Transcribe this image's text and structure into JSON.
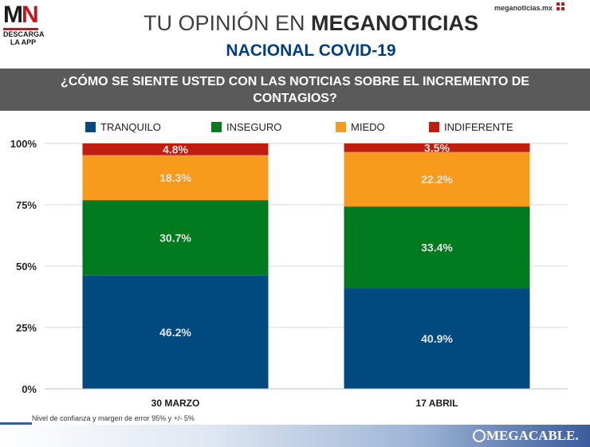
{
  "logo": {
    "mark_m": "M",
    "mark_n": "N",
    "text_line1": "DESCARGA",
    "text_line2": "LA APP"
  },
  "site": "meganoticias.mx",
  "header": {
    "title_light": "TU OPINIÓN EN",
    "title_bold": "MEGANOTICIAS",
    "subtitle": "NACIONAL COVID-19"
  },
  "question": "¿CÓMO SE SIENTE USTED CON LAS NOTICIAS SOBRE EL INCREMENTO DE CONTAGIOS?",
  "colors": {
    "tranquilo": "#004a80",
    "inseguro": "#007a1e",
    "miedo": "#f89a1c",
    "indiferente": "#be1e0f",
    "header_band": "#5a5a5a"
  },
  "chart_data": {
    "type": "bar",
    "stacked": true,
    "categories": [
      "30 MARZO",
      "17 ABRIL"
    ],
    "series": [
      {
        "name": "TRANQUILO",
        "values": [
          46.2,
          40.9
        ],
        "labels": [
          "46.2%",
          "40.9%"
        ],
        "color": "#004a80"
      },
      {
        "name": "INSEGURO",
        "values": [
          30.7,
          33.4
        ],
        "labels": [
          "30.7%",
          "33.4%"
        ],
        "color": "#007a1e"
      },
      {
        "name": "MIEDO",
        "values": [
          18.3,
          22.2
        ],
        "labels": [
          "18.3%",
          "22.2%"
        ],
        "color": "#f89a1c"
      },
      {
        "name": "INDIFERENTE",
        "values": [
          4.8,
          3.5
        ],
        "labels": [
          "4.8%",
          "3.5%"
        ],
        "color": "#be1e0f"
      }
    ],
    "ylim": [
      0,
      100
    ],
    "yticks": [
      "0%",
      "25%",
      "50%",
      "75%",
      "100%"
    ],
    "ytick_values": [
      0,
      25,
      50,
      75,
      100
    ],
    "grid": true,
    "legend_position": "top"
  },
  "footnote": "Nivel de confianza y margen de error 95% y +/- 5%",
  "footer": {
    "brand": "MEGACABLE."
  }
}
